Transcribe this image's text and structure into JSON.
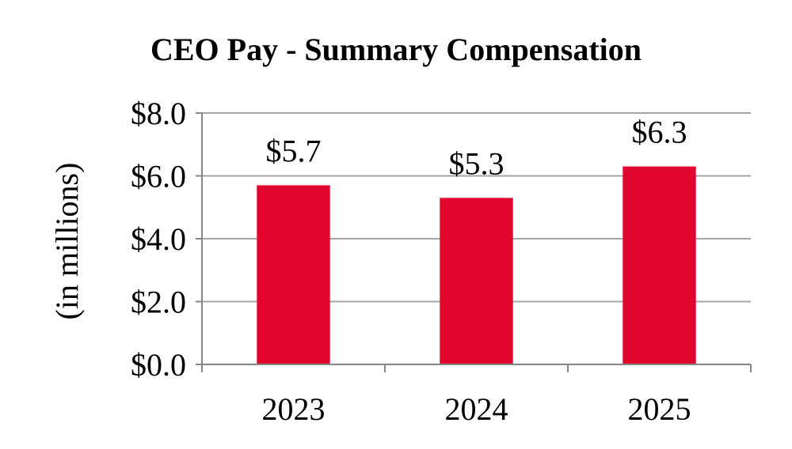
{
  "chart_data": {
    "type": "bar",
    "title": "CEO Pay - Summary  Compensation",
    "ylabel": "(in millions)",
    "xlabel": "",
    "categories": [
      "2023",
      "2024",
      "2025"
    ],
    "values": [
      5.7,
      5.3,
      6.3
    ],
    "data_labels": [
      "$5.7",
      "$5.3",
      "$6.3"
    ],
    "ylim": [
      0,
      8
    ],
    "yticks": [
      0,
      2,
      4,
      6,
      8
    ],
    "ytick_labels": [
      "$0.0",
      "$2.0",
      "$4.0",
      "$6.0",
      "$8.0"
    ],
    "grid": true,
    "legend": "none",
    "bar_color": "#e0062e",
    "grid_color": "#a6a6a6",
    "axis_color": "#868686"
  }
}
